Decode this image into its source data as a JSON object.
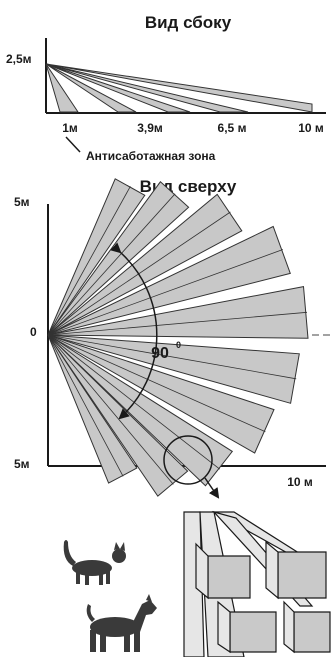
{
  "side_view": {
    "title": "Вид сбоку",
    "height_label": "2,5м",
    "ticks": [
      "1м",
      "3,9м",
      "6,5 м",
      "10 м"
    ],
    "tamper_zone_label": "Антисаботажная зона"
  },
  "top_view": {
    "title": "Вид сверху",
    "y_top_label": "5м",
    "y_mid_label": "0",
    "y_bottom_label": "5м",
    "x_end_label": "10 м",
    "angle_label": "90",
    "angle_degree": "0"
  },
  "colors": {
    "zone_fill": "#c8c8c8",
    "box_front": "#c9c9c9",
    "box_side": "#e6e6e6",
    "line": "#1a1a1a"
  },
  "icons": [
    "cat-icon",
    "dog-icon",
    "magnifier-circle-icon"
  ]
}
